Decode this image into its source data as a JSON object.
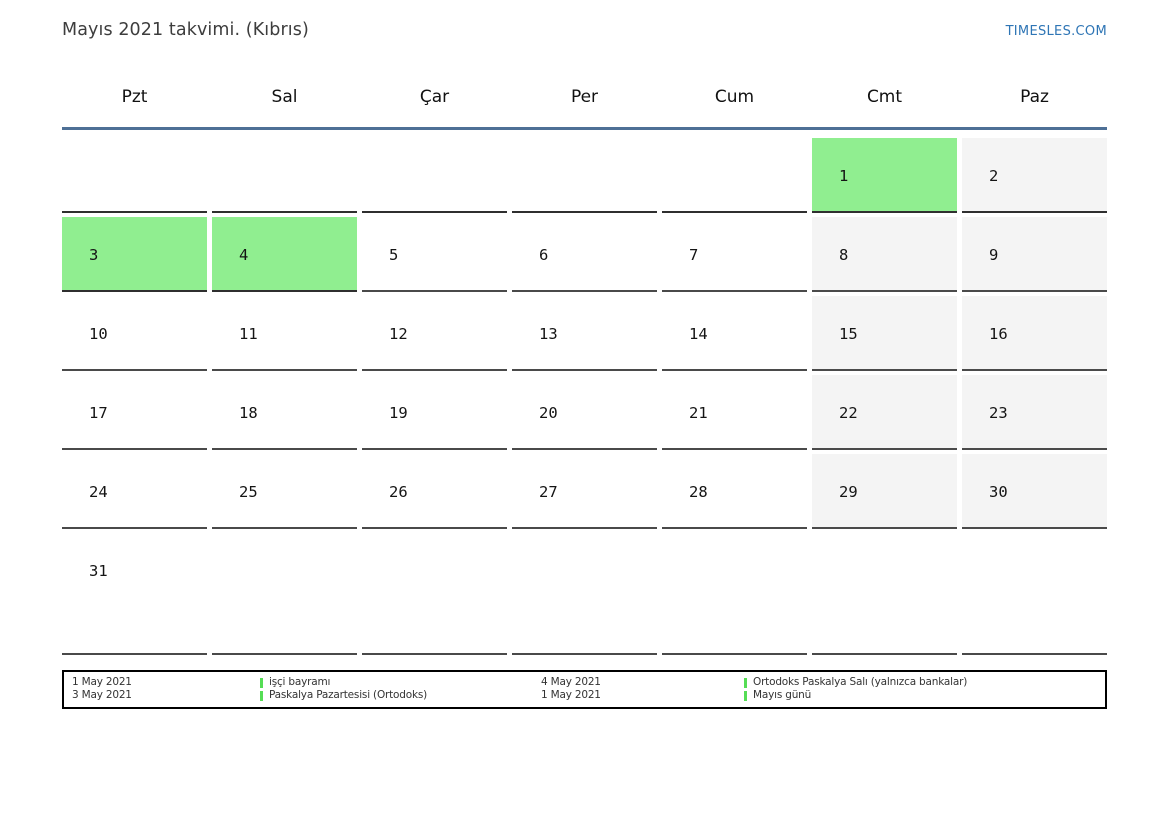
{
  "header": {
    "title": "Mayıs 2021 takvimi. (Kıbrıs)",
    "site_link": "TIMESLES.COM"
  },
  "calendar": {
    "weekdays": [
      "Pzt",
      "Sal",
      "Çar",
      "Per",
      "Cum",
      "Cmt",
      "Paz"
    ],
    "weeks": [
      [
        {
          "day": "",
          "type": "empty"
        },
        {
          "day": "",
          "type": "empty"
        },
        {
          "day": "",
          "type": "empty"
        },
        {
          "day": "",
          "type": "empty"
        },
        {
          "day": "",
          "type": "empty"
        },
        {
          "day": "1",
          "type": "holiday"
        },
        {
          "day": "2",
          "type": "weekend"
        }
      ],
      [
        {
          "day": "3",
          "type": "holiday"
        },
        {
          "day": "4",
          "type": "holiday"
        },
        {
          "day": "5",
          "type": "normal"
        },
        {
          "day": "6",
          "type": "normal"
        },
        {
          "day": "7",
          "type": "normal"
        },
        {
          "day": "8",
          "type": "weekend"
        },
        {
          "day": "9",
          "type": "weekend"
        }
      ],
      [
        {
          "day": "10",
          "type": "normal"
        },
        {
          "day": "11",
          "type": "normal"
        },
        {
          "day": "12",
          "type": "normal"
        },
        {
          "day": "13",
          "type": "normal"
        },
        {
          "day": "14",
          "type": "normal"
        },
        {
          "day": "15",
          "type": "weekend"
        },
        {
          "day": "16",
          "type": "weekend"
        }
      ],
      [
        {
          "day": "17",
          "type": "normal"
        },
        {
          "day": "18",
          "type": "normal"
        },
        {
          "day": "19",
          "type": "normal"
        },
        {
          "day": "20",
          "type": "normal"
        },
        {
          "day": "21",
          "type": "normal"
        },
        {
          "day": "22",
          "type": "weekend"
        },
        {
          "day": "23",
          "type": "weekend"
        }
      ],
      [
        {
          "day": "24",
          "type": "normal"
        },
        {
          "day": "25",
          "type": "normal"
        },
        {
          "day": "26",
          "type": "normal"
        },
        {
          "day": "27",
          "type": "normal"
        },
        {
          "day": "28",
          "type": "normal"
        },
        {
          "day": "29",
          "type": "weekend"
        },
        {
          "day": "30",
          "type": "weekend"
        }
      ],
      [
        {
          "day": "31",
          "type": "normal"
        },
        {
          "day": "",
          "type": "empty"
        },
        {
          "day": "",
          "type": "empty"
        },
        {
          "day": "",
          "type": "empty"
        },
        {
          "day": "",
          "type": "empty"
        },
        {
          "day": "",
          "type": "empty"
        },
        {
          "day": "",
          "type": "empty"
        }
      ]
    ]
  },
  "legend": {
    "entries": [
      {
        "date": "1 May 2021",
        "name": "işçi bayramı"
      },
      {
        "date": "3 May 2021",
        "name": "Paskalya Pazartesisi (Ortodoks)"
      },
      {
        "date": "4 May 2021",
        "name": "Ortodoks Paskalya Salı (yalnızca bankalar)"
      },
      {
        "date": "1 May 2021",
        "name": "Mayıs günü"
      }
    ],
    "display_order": [
      0,
      2,
      1,
      3
    ]
  },
  "colors": {
    "holiday_green": "#90ee90",
    "weekend_gray": "#f4f4f4",
    "link_blue": "#2e75b5",
    "header_rule_blue": "#4e7096",
    "legend_marker_green": "#55dd55",
    "cell_border": "#4a4a4a"
  }
}
